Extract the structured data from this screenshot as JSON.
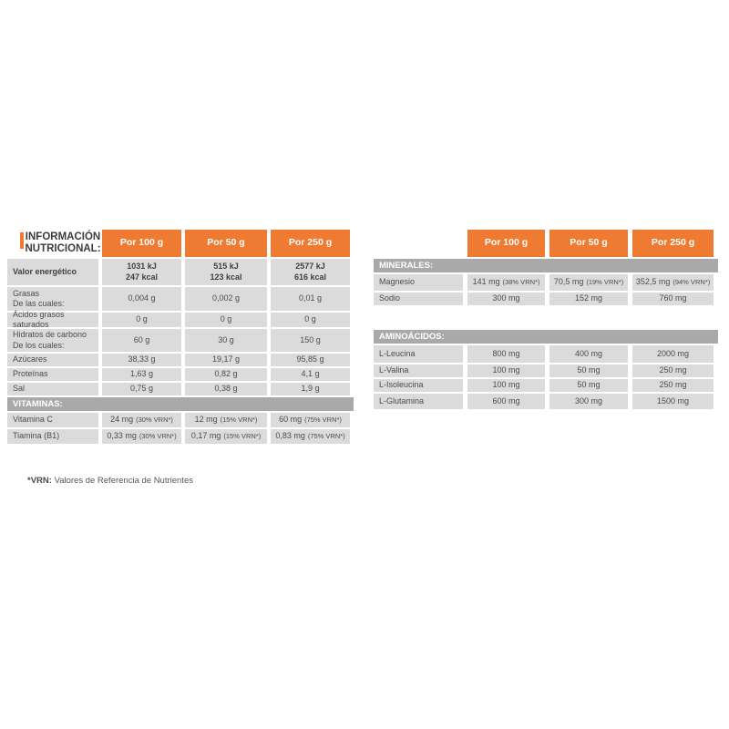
{
  "colors": {
    "orange": "#ee7b31",
    "section_gray": "#a9a9a9",
    "cell_gray": "#dbdbdb"
  },
  "footnote": {
    "label": "*VRN:",
    "text": "Valores de Referencia de Nutrientes"
  },
  "left_table": {
    "title_line1": "INFORMACIÓN",
    "title_line2": "NUTRICIONAL:",
    "columns": [
      "Por 100 g",
      "Por 50 g",
      "Por 250 g"
    ],
    "rows": [
      {
        "label": "Valor energético",
        "v1a": "1031 kJ",
        "v1b": "247 kcal",
        "v2a": "515 kJ",
        "v2b": "123 kcal",
        "v3a": "2577 kJ",
        "v3b": "616 kcal"
      },
      {
        "label": "Grasas",
        "sublabel": "De las cuales:",
        "v1": "0,004 g",
        "v2": "0,002 g",
        "v3": "0,01 g"
      },
      {
        "label": "Ácidos grasos saturados",
        "v1": "0 g",
        "v2": "0 g",
        "v3": "0 g"
      },
      {
        "label": "Hidratos de carbono",
        "sublabel": "De los cuales:",
        "v1": "60 g",
        "v2": "30 g",
        "v3": "150 g"
      },
      {
        "label": "Azúcares",
        "v1": "38,33 g",
        "v2": "19,17 g",
        "v3": "95,85 g"
      },
      {
        "label": "Proteínas",
        "v1": "1,63 g",
        "v2": "0,82 g",
        "v3": "4,1 g"
      },
      {
        "label": "Sal",
        "v1": "0,75 g",
        "v2": "0,38 g",
        "v3": "1,9 g"
      }
    ],
    "section_vitaminas": "VITAMINAS:",
    "vitamin_rows": [
      {
        "label": "Vitamina C",
        "v1": "24 mg",
        "v1s": "(30% VRN*)",
        "v2": "12 mg",
        "v2s": "(15% VRN*)",
        "v3": "60 mg",
        "v3s": "(75% VRN*)"
      },
      {
        "label": "Tiamina (B1)",
        "v1": "0,33 mg",
        "v1s": "(30% VRN*)",
        "v2": "0,17 mg",
        "v2s": "(15% VRN*)",
        "v3": "0,83 mg",
        "v3s": "(75% VRN*)"
      }
    ]
  },
  "right_table": {
    "columns": [
      "Por 100 g",
      "Por 50 g",
      "Por 250 g"
    ],
    "section_minerales": "MINERALES:",
    "mineral_rows": [
      {
        "label": "Magnesio",
        "v1": "141 mg",
        "v1s": "(38% VRN*)",
        "v2": "70,5 mg",
        "v2s": "(19% VRN*)",
        "v3": "352,5 mg",
        "v3s": "(94% VRN*)"
      },
      {
        "label": "Sodio",
        "v1": "300 mg",
        "v2": "152 mg",
        "v3": "760 mg"
      }
    ],
    "section_aminoacidos": "AMINOÁCIDOS:",
    "amino_rows": [
      {
        "label": "L-Leucina",
        "v1": "800 mg",
        "v2": "400 mg",
        "v3": "2000 mg"
      },
      {
        "label": "L-Valina",
        "v1": "100 mg",
        "v2": "50 mg",
        "v3": "250 mg"
      },
      {
        "label": "L-Isoleucina",
        "v1": "100 mg",
        "v2": "50 mg",
        "v3": "250 mg"
      },
      {
        "label": "L-Glutamina",
        "v1": "600 mg",
        "v2": "300 mg",
        "v3": "1500 mg"
      }
    ]
  }
}
